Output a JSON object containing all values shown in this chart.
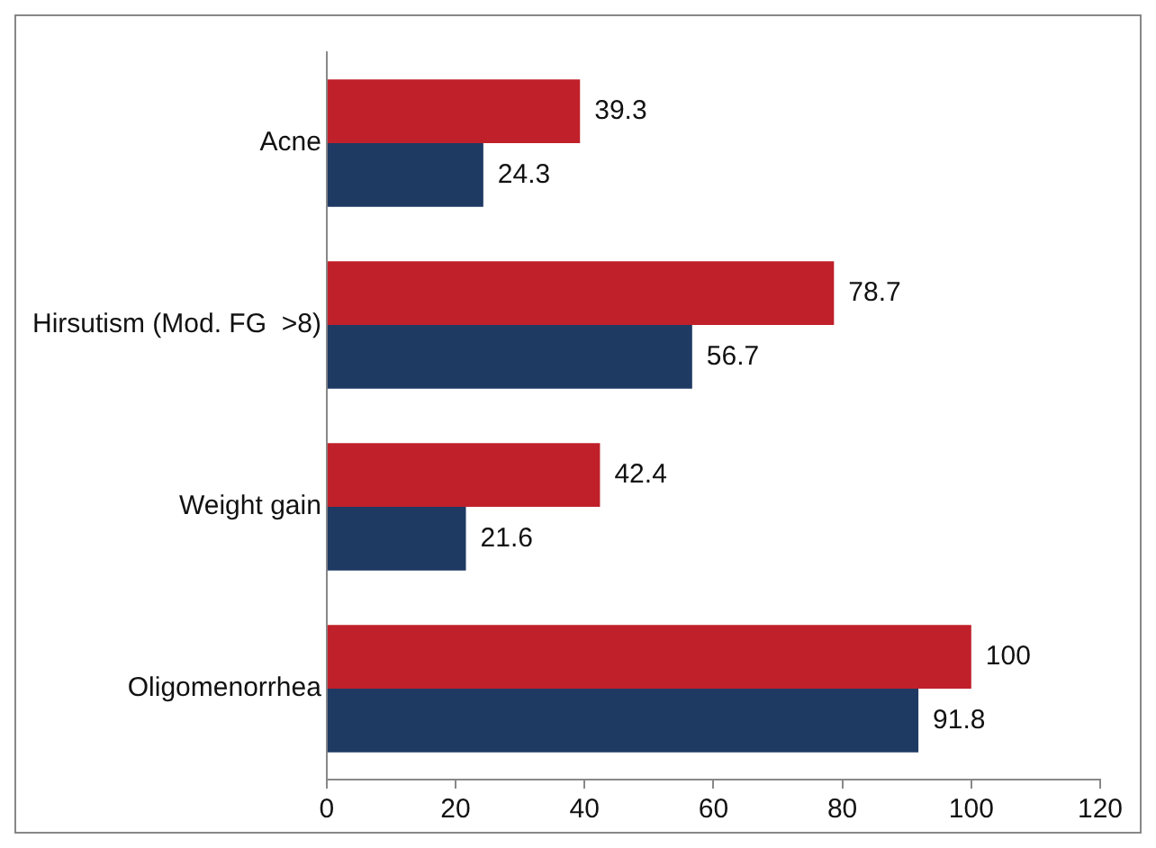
{
  "chart_data": {
    "type": "bar",
    "orientation": "horizontal",
    "categories": [
      "Acne",
      "Hirsutism (Mod. FG  >8)",
      "Weight gain",
      "Oligomenorrhea"
    ],
    "series": [
      {
        "color": "#c0202a",
        "values": [
          39.3,
          78.7,
          42.4,
          100
        ]
      },
      {
        "color": "#1e3a63",
        "values": [
          24.3,
          56.7,
          21.6,
          91.8
        ]
      }
    ],
    "xlim": [
      0,
      120
    ],
    "xticks": [
      0,
      20,
      40,
      60,
      80,
      100,
      120
    ],
    "data_labels": true,
    "grid": false,
    "legend": false
  }
}
